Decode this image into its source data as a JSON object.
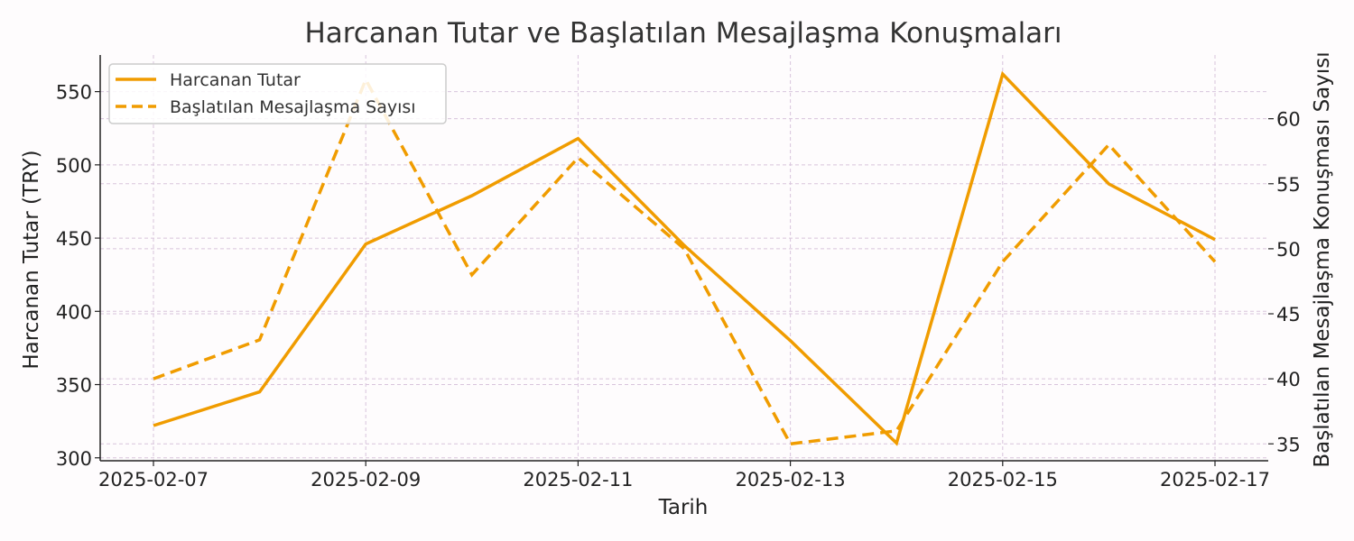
{
  "chart_data": {
    "type": "line",
    "title": "Harcanan Tutar ve Başlatılan Mesajlaşma Konuşmaları",
    "xlabel": "Tarih",
    "ylabel_left": "Harcanan Tutar (TRY)",
    "ylabel_right": "Başlatılan Mesajlaşma Konuşması Sayısı",
    "x": [
      "2025-02-07",
      "2025-02-08",
      "2025-02-09",
      "2025-02-10",
      "2025-02-11",
      "2025-02-12",
      "2025-02-13",
      "2025-02-14",
      "2025-02-15",
      "2025-02-16",
      "2025-02-17"
    ],
    "x_tick_labels": [
      "2025-02-07",
      "2025-02-09",
      "2025-02-11",
      "2025-02-13",
      "2025-02-15",
      "2025-02-17"
    ],
    "ylim_left": [
      298,
      575
    ],
    "ylim_right": [
      33.7,
      64.9
    ],
    "yticks_left": [
      300,
      350,
      400,
      450,
      500,
      550
    ],
    "yticks_right": [
      35,
      40,
      45,
      50,
      55,
      60
    ],
    "grid": true,
    "legend_position": "upper-left",
    "color": "#f09c00",
    "series": [
      {
        "name": "Harcanan Tutar",
        "axis": "left",
        "style": "solid",
        "values": [
          322,
          345,
          446,
          479,
          518,
          445,
          380,
          310,
          562,
          487,
          449
        ]
      },
      {
        "name": "Başlatılan Mesajlaşma Sayısı",
        "axis": "right",
        "style": "dashed",
        "values": [
          40,
          43,
          63,
          48,
          57,
          50,
          35,
          36,
          49,
          58,
          49
        ]
      }
    ]
  }
}
